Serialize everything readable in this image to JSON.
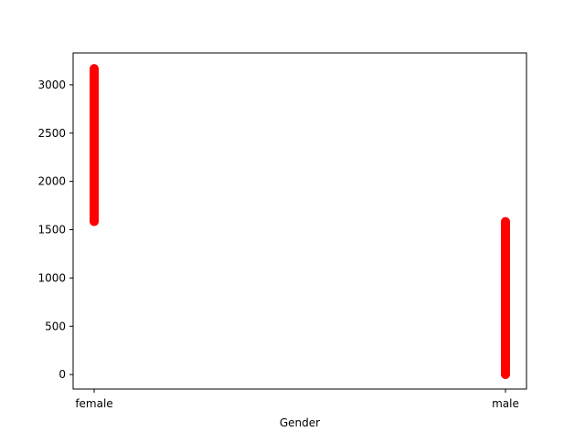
{
  "chart_data": {
    "type": "scatter",
    "title": "",
    "xlabel": "Gender",
    "ylabel": "",
    "categories": [
      "female",
      "male"
    ],
    "ylim": [
      -150,
      3330
    ],
    "yticks": [
      0,
      500,
      1000,
      1500,
      2000,
      2500,
      3000
    ],
    "grid": false,
    "legend": "none",
    "marker_color": "#ff0000",
    "series": [
      {
        "points": [
          {
            "category": "female",
            "y_min": 1584,
            "y_max": 3168,
            "step": 8
          },
          {
            "category": "male",
            "y_min": 0,
            "y_max": 1584,
            "step": 8
          }
        ]
      }
    ]
  }
}
